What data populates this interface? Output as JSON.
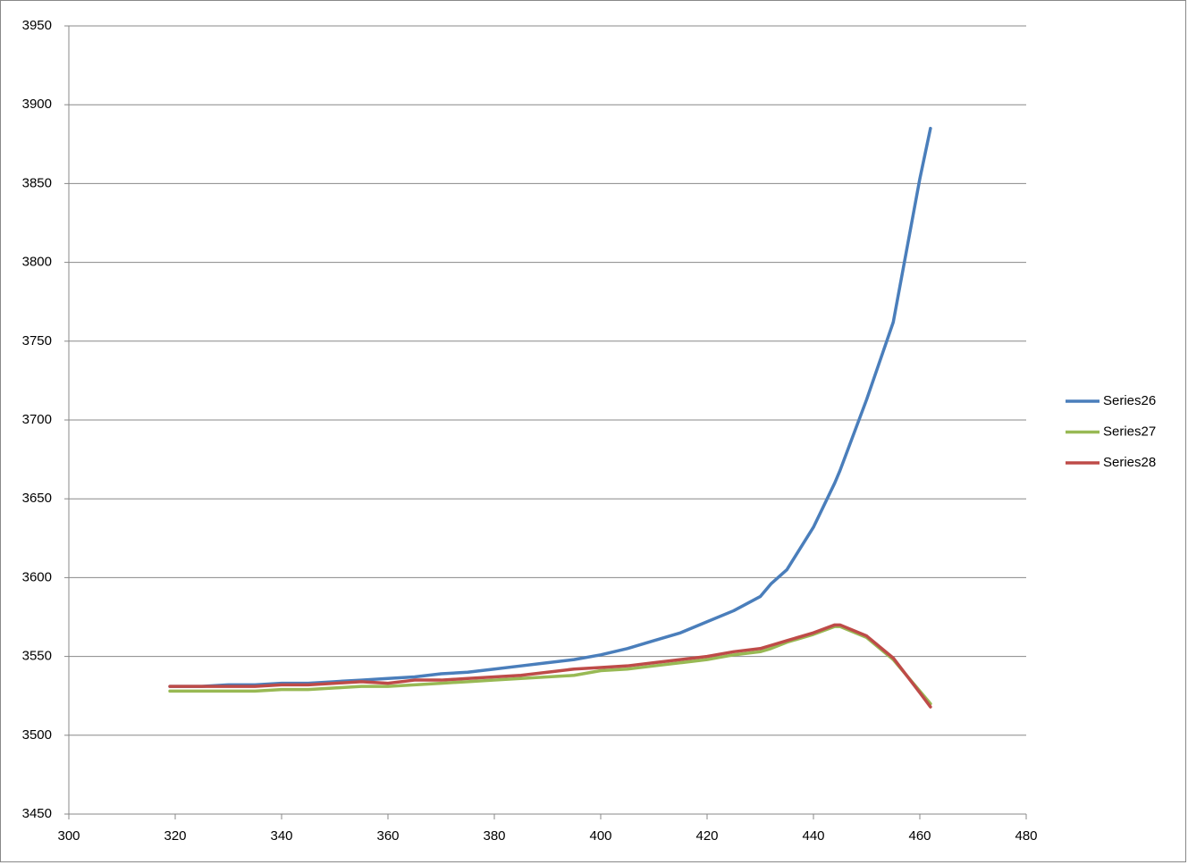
{
  "chart_data": {
    "type": "line",
    "x": [
      319,
      325,
      330,
      335,
      340,
      345,
      350,
      355,
      360,
      365,
      370,
      375,
      380,
      385,
      390,
      395,
      400,
      405,
      410,
      415,
      420,
      425,
      430,
      432,
      435,
      440,
      444,
      445,
      450,
      455,
      460,
      462
    ],
    "series": [
      {
        "name": "Series26",
        "color": "#4a7ebb",
        "values": [
          3531,
          3531,
          3532,
          3532,
          3533,
          3533,
          3534,
          3535,
          3536,
          3537,
          3539,
          3540,
          3542,
          3544,
          3546,
          3548,
          3551,
          3555,
          3560,
          3565,
          3572,
          3579,
          3588,
          3596,
          3605,
          3632,
          3660,
          3668,
          3713,
          3762,
          3853,
          3885
        ]
      },
      {
        "name": "Series27",
        "color": "#98b954",
        "values": [
          3528,
          3528,
          3528,
          3528,
          3529,
          3529,
          3530,
          3531,
          3531,
          3532,
          3533,
          3534,
          3535,
          3536,
          3537,
          3538,
          3541,
          3542,
          3544,
          3546,
          3548,
          3551,
          3553,
          3555,
          3559,
          3564,
          3569,
          3569,
          3562,
          3548,
          3528,
          3520
        ]
      },
      {
        "name": "Series28",
        "color": "#be4b48",
        "values": [
          3531,
          3531,
          3531,
          3531,
          3532,
          3532,
          3533,
          3534,
          3533,
          3535,
          3535,
          3536,
          3537,
          3538,
          3540,
          3542,
          3543,
          3544,
          3546,
          3548,
          3550,
          3553,
          3555,
          3557,
          3560,
          3565,
          3570,
          3570,
          3563,
          3549,
          3527,
          3518
        ]
      }
    ],
    "xlim": [
      300,
      480
    ],
    "xticks": [
      300,
      320,
      340,
      360,
      380,
      400,
      420,
      440,
      460,
      480
    ],
    "ylim": [
      3450,
      3950
    ],
    "yticks": [
      3450,
      3500,
      3550,
      3600,
      3650,
      3700,
      3750,
      3800,
      3850,
      3900,
      3950
    ],
    "grid": true,
    "legend": "right"
  }
}
